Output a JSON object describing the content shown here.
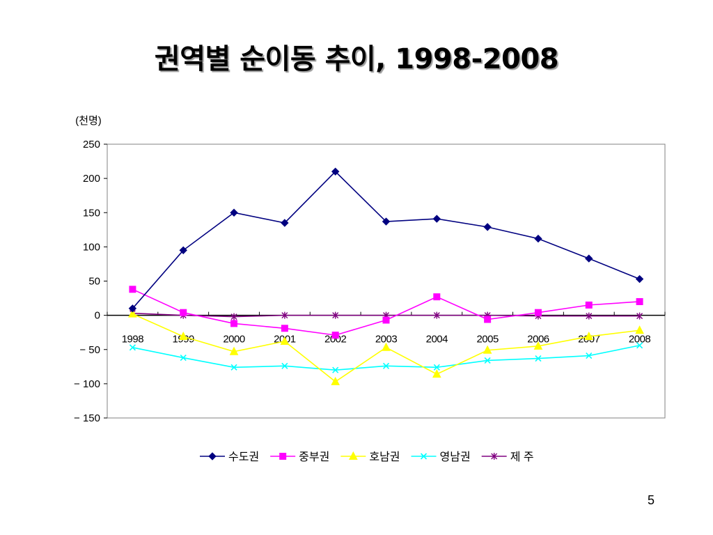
{
  "slide": {
    "title": "권역별 순이동 추이, 1998-2008",
    "page_number": "5"
  },
  "chart_data": {
    "type": "line",
    "title": "",
    "xlabel": "",
    "ylabel": "(천명)",
    "categories": [
      "1998",
      "1999",
      "2000",
      "2001",
      "2002",
      "2003",
      "2004",
      "2005",
      "2006",
      "2007",
      "2008"
    ],
    "ylim": [
      -150,
      250
    ],
    "yticks": [
      250,
      200,
      150,
      100,
      50,
      0,
      -50,
      -100,
      -150
    ],
    "ytick_labels": [
      "250",
      "200",
      "150",
      "100",
      "50",
      "0",
      "− 50",
      "− 100",
      "− 150"
    ],
    "grid": false,
    "legend_position": "bottom",
    "series": [
      {
        "name": "수도권",
        "color": "#000080",
        "marker": "diamond",
        "values": [
          10,
          95,
          150,
          135,
          210,
          137,
          141,
          129,
          112,
          83,
          53
        ]
      },
      {
        "name": "중부권",
        "color": "#ff00ff",
        "marker": "square",
        "values": [
          38,
          4,
          -12,
          -19,
          -29,
          -7,
          27,
          -6,
          4,
          15,
          20
        ]
      },
      {
        "name": "호남권",
        "color": "#ffff00",
        "marker": "triangle",
        "values": [
          2,
          -31,
          -53,
          -38,
          -97,
          -47,
          -86,
          -51,
          -45,
          -31,
          -22
        ]
      },
      {
        "name": "영남권",
        "color": "#00ffff",
        "marker": "x",
        "values": [
          -47,
          -62,
          -76,
          -74,
          -80,
          -74,
          -76,
          -66,
          -63,
          -59,
          -44
        ]
      },
      {
        "name": "제 주",
        "color": "#800080",
        "marker": "asterisk",
        "values": [
          3,
          0,
          -2,
          0,
          0,
          0,
          0,
          0,
          -1,
          -1,
          -1
        ]
      }
    ]
  }
}
